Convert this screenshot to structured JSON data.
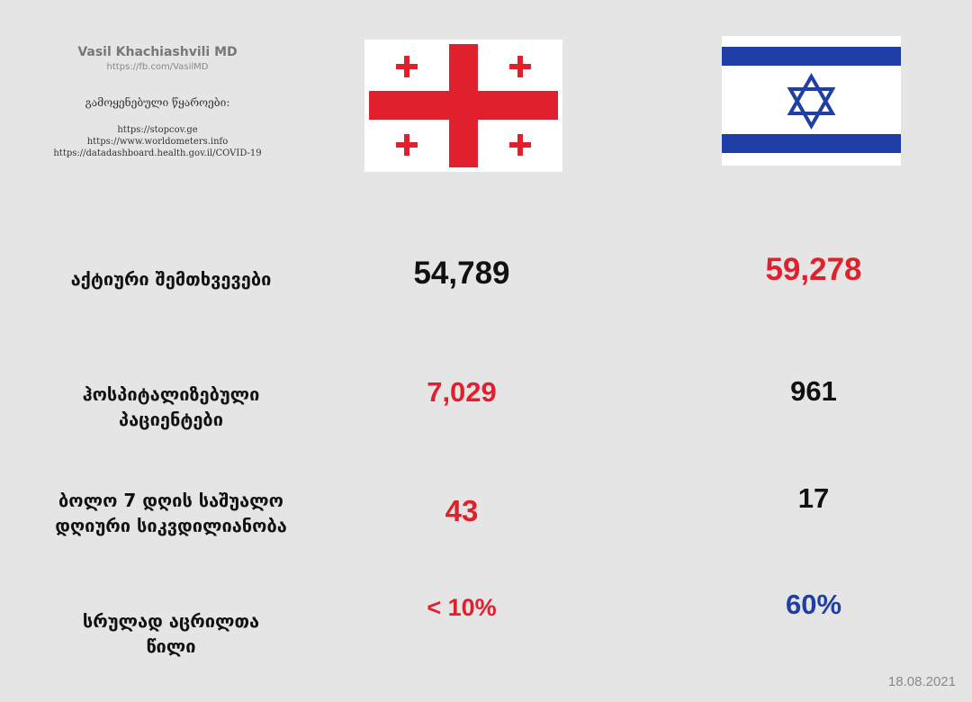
{
  "header": {
    "author": "Vasil Khachiashvili MD",
    "author_url": "https://fb.com/VasilMD",
    "sources_heading": "გამოყენებული წყაროები:",
    "sources": [
      "https://stopcov.ge",
      "https://www.worldometers.info",
      "https://datadashboard.health.gov.il/COVID-19"
    ]
  },
  "colors": {
    "red": "#e0202c",
    "blue": "#1f3ea6",
    "black": "#111111"
  },
  "rows": [
    {
      "label_lines": [
        "აქტიური შემთხვევები"
      ],
      "georgia": "54,789",
      "israel": "59,278"
    },
    {
      "label_lines": [
        "ჰოსპიტალიზებული",
        "პაციენტები"
      ],
      "georgia": "7,029",
      "israel": "961"
    },
    {
      "label_lines": [
        "ბოლო 7 დღის საშუალო",
        "დღიური სიკვდილიანობა"
      ],
      "georgia": "43",
      "israel": "17"
    },
    {
      "label_lines": [
        "სრულად აცრილთა",
        "წილი"
      ],
      "georgia": "< 10%",
      "israel": "60%"
    }
  ],
  "date": "18.08.2021"
}
